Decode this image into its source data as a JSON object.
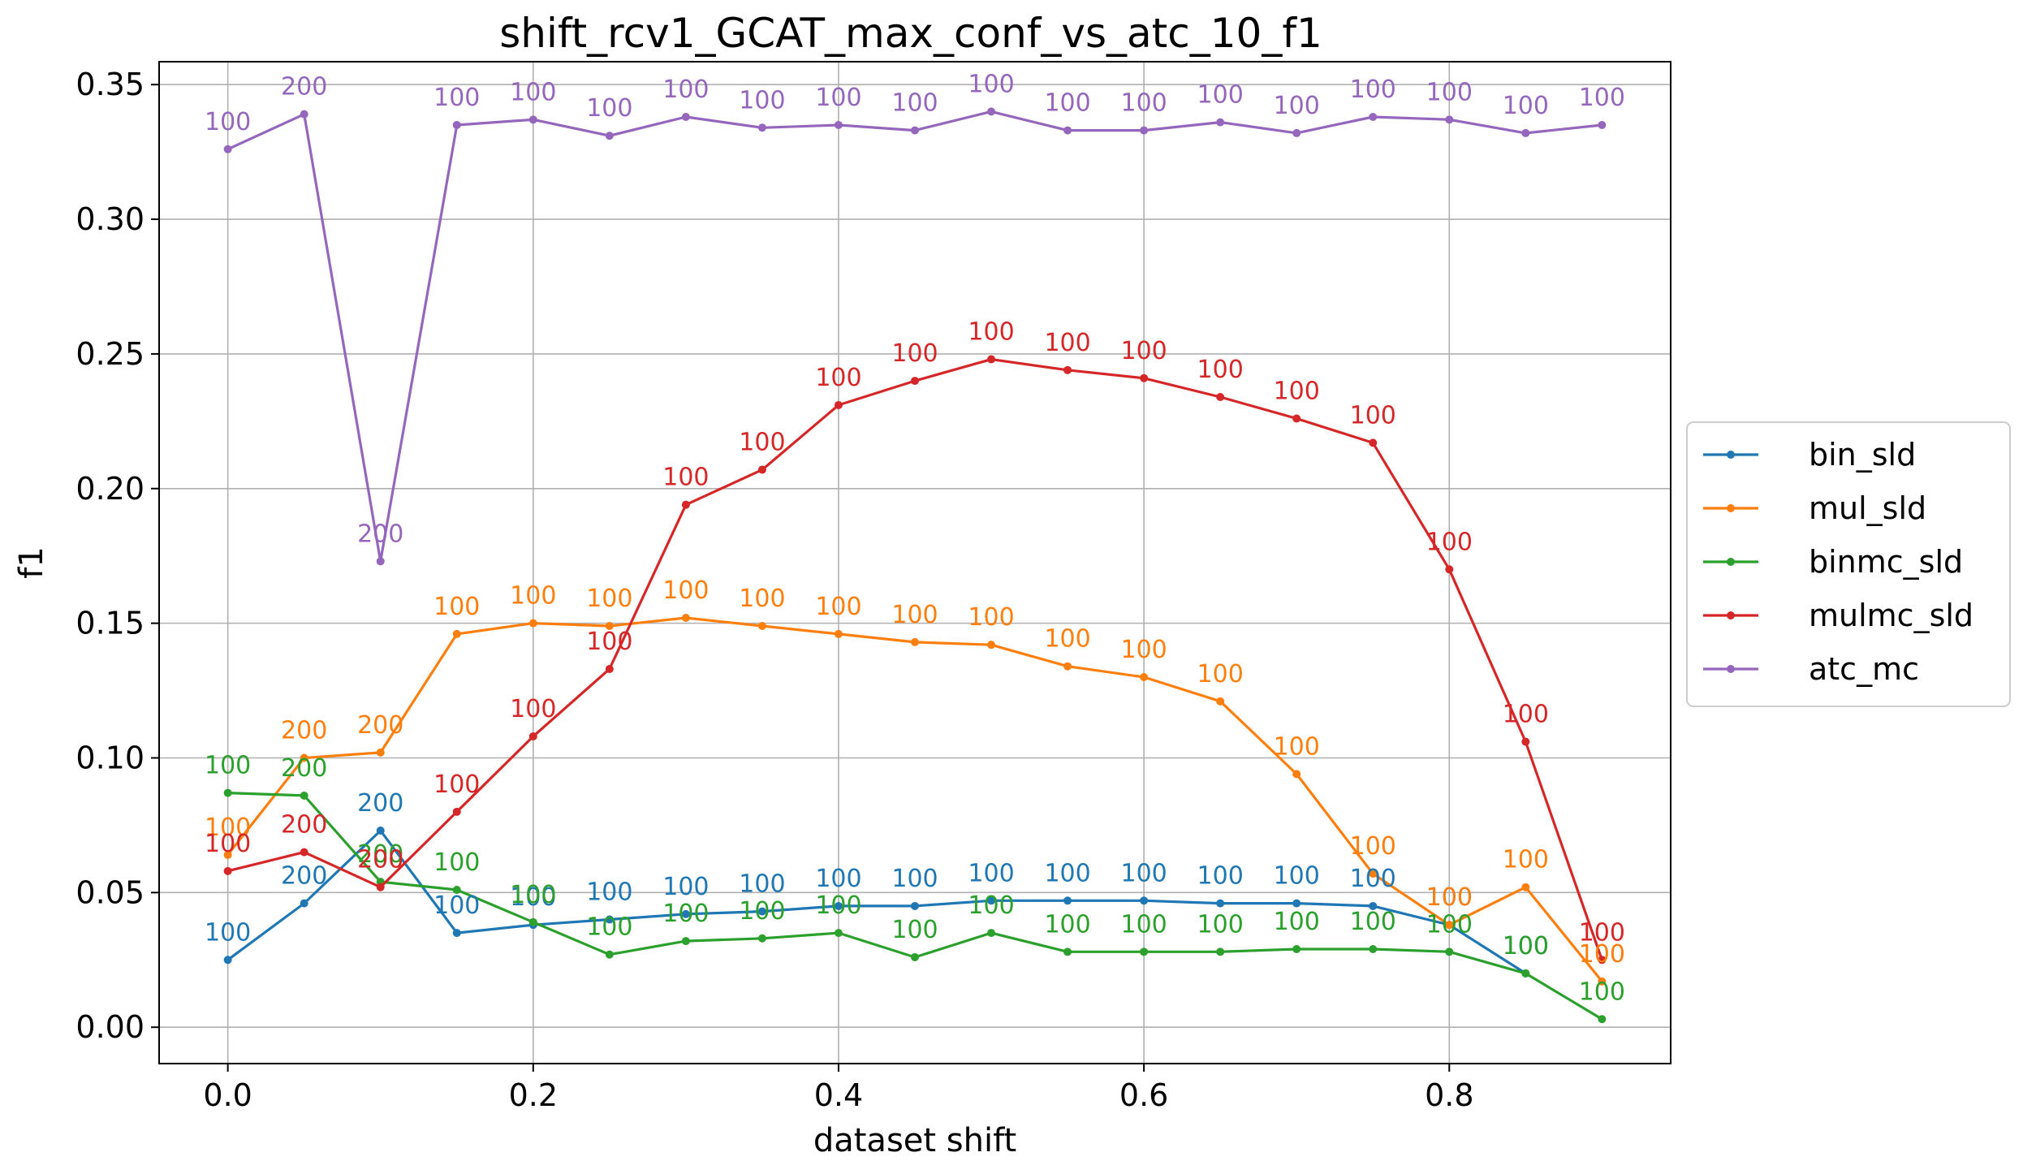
{
  "chart_data": {
    "type": "line",
    "title": "shift_rcv1_GCAT_max_conf_vs_atc_10_f1",
    "xlabel": "dataset shift",
    "ylabel": "f1",
    "xlim": [
      -0.045,
      0.945
    ],
    "ylim": [
      -0.0135,
      0.3585
    ],
    "xticks": [
      0.0,
      0.2,
      0.4,
      0.6,
      0.8
    ],
    "xtick_labels": [
      "0.0",
      "0.2",
      "0.4",
      "0.6",
      "0.8"
    ],
    "yticks": [
      0.0,
      0.05,
      0.1,
      0.15,
      0.2,
      0.25,
      0.3,
      0.35
    ],
    "ytick_labels": [
      "0.00",
      "0.05",
      "0.10",
      "0.15",
      "0.20",
      "0.25",
      "0.30",
      "0.35"
    ],
    "grid": true,
    "legend_position": "outside-right",
    "x": [
      0.0,
      0.05,
      0.1,
      0.15,
      0.2,
      0.25,
      0.3,
      0.35,
      0.4,
      0.45,
      0.5,
      0.55,
      0.6,
      0.65,
      0.7,
      0.75,
      0.8,
      0.85,
      0.9
    ],
    "series": [
      {
        "name": "bin_sld",
        "color": "#1f77b4",
        "values": [
          0.025,
          0.046,
          0.073,
          0.035,
          0.038,
          0.04,
          0.042,
          0.043,
          0.045,
          0.045,
          0.047,
          0.047,
          0.047,
          0.046,
          0.046,
          0.045,
          0.038,
          0.02,
          null
        ],
        "labels": [
          "100",
          "200",
          "200",
          "100",
          "100",
          "100",
          "100",
          "100",
          "100",
          "100",
          "100",
          "100",
          "100",
          "100",
          "100",
          "100",
          "100",
          "100",
          ""
        ]
      },
      {
        "name": "mul_sld",
        "color": "#ff7f0e",
        "values": [
          0.064,
          0.1,
          0.102,
          0.146,
          0.15,
          0.149,
          0.152,
          0.149,
          0.146,
          0.143,
          0.142,
          0.134,
          0.13,
          0.121,
          0.094,
          0.057,
          0.038,
          0.052,
          0.017
        ],
        "labels": [
          "100",
          "200",
          "200",
          "100",
          "100",
          "100",
          "100",
          "100",
          "100",
          "100",
          "100",
          "100",
          "100",
          "100",
          "100",
          "100",
          "100",
          "100",
          "100"
        ]
      },
      {
        "name": "binmc_sld",
        "color": "#2ca02c",
        "values": [
          0.087,
          0.086,
          0.054,
          0.051,
          0.039,
          0.027,
          0.032,
          0.033,
          0.035,
          0.026,
          0.035,
          0.028,
          0.028,
          0.028,
          0.029,
          0.029,
          0.028,
          0.02,
          0.003
        ],
        "labels": [
          "100",
          "200",
          "200",
          "100",
          "100",
          "100",
          "100",
          "100",
          "100",
          "100",
          "100",
          "100",
          "100",
          "100",
          "100",
          "100",
          "100",
          "100",
          "100"
        ]
      },
      {
        "name": "mulmc_sld",
        "color": "#d62728",
        "values": [
          0.058,
          0.065,
          0.052,
          0.08,
          0.108,
          0.133,
          0.194,
          0.207,
          0.231,
          0.24,
          0.248,
          0.244,
          0.241,
          0.234,
          0.226,
          0.217,
          0.17,
          0.106,
          0.025
        ],
        "labels": [
          "100",
          "200",
          "200",
          "100",
          "100",
          "100",
          "100",
          "100",
          "100",
          "100",
          "100",
          "100",
          "100",
          "100",
          "100",
          "100",
          "100",
          "100",
          "100"
        ]
      },
      {
        "name": "atc_mc",
        "color": "#9467bd",
        "values": [
          0.326,
          0.339,
          0.173,
          0.335,
          0.337,
          0.331,
          0.338,
          0.334,
          0.335,
          0.333,
          0.34,
          0.333,
          0.333,
          0.336,
          0.332,
          0.338,
          0.337,
          0.332,
          0.335
        ],
        "labels": [
          "100",
          "200",
          "200",
          "100",
          "100",
          "100",
          "100",
          "100",
          "100",
          "100",
          "100",
          "100",
          "100",
          "100",
          "100",
          "100",
          "100",
          "100",
          "100"
        ]
      }
    ]
  }
}
